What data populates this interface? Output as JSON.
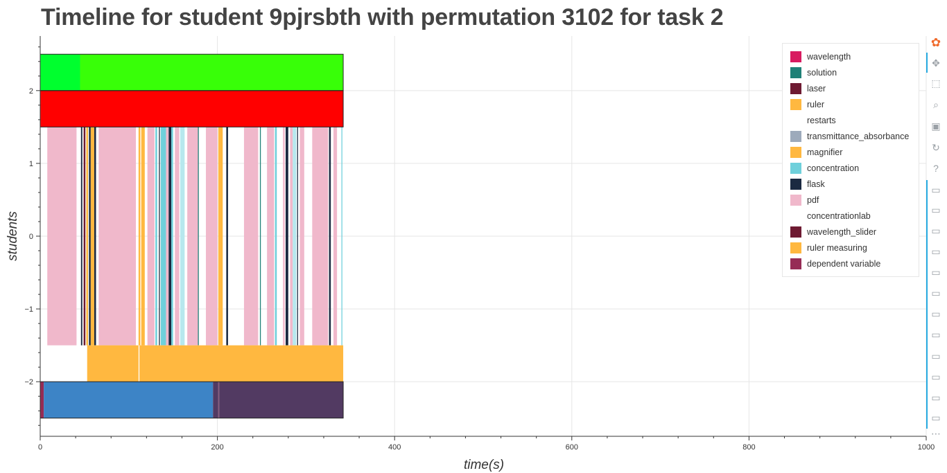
{
  "title": "Timeline for student 9pjrsbth with permutation 3102 for task 2",
  "chart_data": {
    "type": "bar",
    "orientation": "horizontal-timeline",
    "xlabel": "time(s)",
    "ylabel": "students",
    "xlim": [
      0,
      1000
    ],
    "ylim": [
      -2.75,
      2.75
    ],
    "x_ticks": [
      0,
      200,
      400,
      600,
      800,
      1000
    ],
    "y_ticks": [
      2,
      1,
      0,
      -1,
      -2
    ],
    "y_tick_labels": [
      "2",
      "1",
      "0",
      "−1",
      "−2"
    ],
    "grid": true,
    "legend_position": "top-right",
    "legend": [
      {
        "label": "wavelength",
        "color": "#d81b60"
      },
      {
        "label": "solution",
        "color": "#1f8077"
      },
      {
        "label": "laser",
        "color": "#6e1a32"
      },
      {
        "label": "ruler",
        "color": "#ffb840"
      },
      {
        "label": "restarts",
        "color": "#ffffff"
      },
      {
        "label": "transmittance_absorbance",
        "color": "#9daabb"
      },
      {
        "label": "magnifier",
        "color": "#ffb840"
      },
      {
        "label": "concentration",
        "color": "#6fd0db"
      },
      {
        "label": "flask",
        "color": "#1b2a41"
      },
      {
        "label": "pdf",
        "color": "#f0b8cb"
      },
      {
        "label": "concentrationlab",
        "color": "#ffffff"
      },
      {
        "label": "wavelength_slider",
        "color": "#6e1a32"
      },
      {
        "label": "ruler measuring",
        "color": "#ffb840"
      },
      {
        "label": "dependent variable",
        "color": "#962c55"
      }
    ],
    "rows": [
      {
        "y0": 2.0,
        "y1": 2.5,
        "segments": [
          {
            "start": 0,
            "end": 45,
            "color": "#00ff2e"
          },
          {
            "start": 45,
            "end": 342,
            "color": "#38ff08"
          }
        ]
      },
      {
        "y0": 1.5,
        "y1": 2.0,
        "segments": [
          {
            "start": 0,
            "end": 342,
            "color": "#ff0000"
          }
        ]
      },
      {
        "y0": -1.5,
        "y1": 1.5,
        "segments": [
          {
            "start": 8,
            "end": 41,
            "color": "#f0b8cb"
          },
          {
            "start": 46,
            "end": 47.5,
            "color": "#1b2a41"
          },
          {
            "start": 49,
            "end": 51,
            "color": "#6e1a32"
          },
          {
            "start": 52,
            "end": 54,
            "color": "#ffb840"
          },
          {
            "start": 55,
            "end": 57,
            "color": "#1b2a41"
          },
          {
            "start": 57,
            "end": 61,
            "color": "#ffb840"
          },
          {
            "start": 61,
            "end": 63,
            "color": "#1b2a41"
          },
          {
            "start": 66,
            "end": 108,
            "color": "#f0b8cb"
          },
          {
            "start": 111,
            "end": 113,
            "color": "#ffb840"
          },
          {
            "start": 114,
            "end": 118,
            "color": "#ffb840"
          },
          {
            "start": 121,
            "end": 129,
            "color": "#f0b8cb"
          },
          {
            "start": 130,
            "end": 132,
            "color": "#6fd0db"
          },
          {
            "start": 134,
            "end": 135,
            "color": "#1b2a41"
          },
          {
            "start": 136,
            "end": 142,
            "color": "#6fd0db"
          },
          {
            "start": 142,
            "end": 145,
            "color": "#f0b8cb"
          },
          {
            "start": 145,
            "end": 148,
            "color": "#1b2a41"
          },
          {
            "start": 148,
            "end": 150,
            "color": "#6fd0db"
          },
          {
            "start": 152,
            "end": 157,
            "color": "#f0b8cb"
          },
          {
            "start": 158,
            "end": 163,
            "color": "#b7e8ee"
          },
          {
            "start": 166,
            "end": 178,
            "color": "#f0b8cb"
          },
          {
            "start": 178,
            "end": 179,
            "color": "#1f8077"
          },
          {
            "start": 187,
            "end": 200,
            "color": "#f0b8cb"
          },
          {
            "start": 201,
            "end": 203,
            "color": "#ffb840"
          },
          {
            "start": 203,
            "end": 206,
            "color": "#ffb840"
          },
          {
            "start": 210,
            "end": 212,
            "color": "#1b2a41"
          },
          {
            "start": 230,
            "end": 246,
            "color": "#f0b8cb"
          },
          {
            "start": 248,
            "end": 249,
            "color": "#1f8077"
          },
          {
            "start": 256,
            "end": 264,
            "color": "#f0b8cb"
          },
          {
            "start": 265,
            "end": 267,
            "color": "#6fd0db"
          },
          {
            "start": 274,
            "end": 276,
            "color": "#f0b8cb"
          },
          {
            "start": 277,
            "end": 280,
            "color": "#1b2a41"
          },
          {
            "start": 282,
            "end": 285,
            "color": "#f0b8cb"
          },
          {
            "start": 285,
            "end": 289,
            "color": "#b7e8ee"
          },
          {
            "start": 290,
            "end": 291,
            "color": "#1b2a41"
          },
          {
            "start": 293,
            "end": 298,
            "color": "#f0b8cb"
          },
          {
            "start": 307,
            "end": 325,
            "color": "#f0b8cb"
          },
          {
            "start": 326,
            "end": 328,
            "color": "#1b2a41"
          },
          {
            "start": 331,
            "end": 335,
            "color": "#f0b8cb"
          },
          {
            "start": 340,
            "end": 341,
            "color": "#6fd0db"
          }
        ]
      },
      {
        "y0": -2.0,
        "y1": -1.5,
        "segments": [
          {
            "start": 53,
            "end": 111,
            "color": "#ffb840"
          },
          {
            "start": 112,
            "end": 342,
            "color": "#ffb840"
          }
        ]
      },
      {
        "y0": -2.5,
        "y1": -2.0,
        "segments": [
          {
            "start": 0,
            "end": 4,
            "color": "#962c55"
          },
          {
            "start": 4,
            "end": 195,
            "color": "#3d84c6"
          },
          {
            "start": 195,
            "end": 201,
            "color": "#523a62"
          },
          {
            "start": 201,
            "end": 202,
            "color": "#8b5c7e"
          },
          {
            "start": 202,
            "end": 342,
            "color": "#523a62"
          }
        ]
      }
    ]
  },
  "toolbar": {
    "tools": [
      "bokeh-logo-icon",
      "pan-icon",
      "box-zoom-icon",
      "wheel-zoom-icon",
      "save-icon",
      "reset-icon",
      "help-icon",
      "hover-icon",
      "hover-icon",
      "hover-icon",
      "hover-icon",
      "hover-icon",
      "hover-icon",
      "hover-icon",
      "hover-icon",
      "hover-icon",
      "hover-icon",
      "hover-icon",
      "hover-icon",
      "more-icon"
    ]
  }
}
